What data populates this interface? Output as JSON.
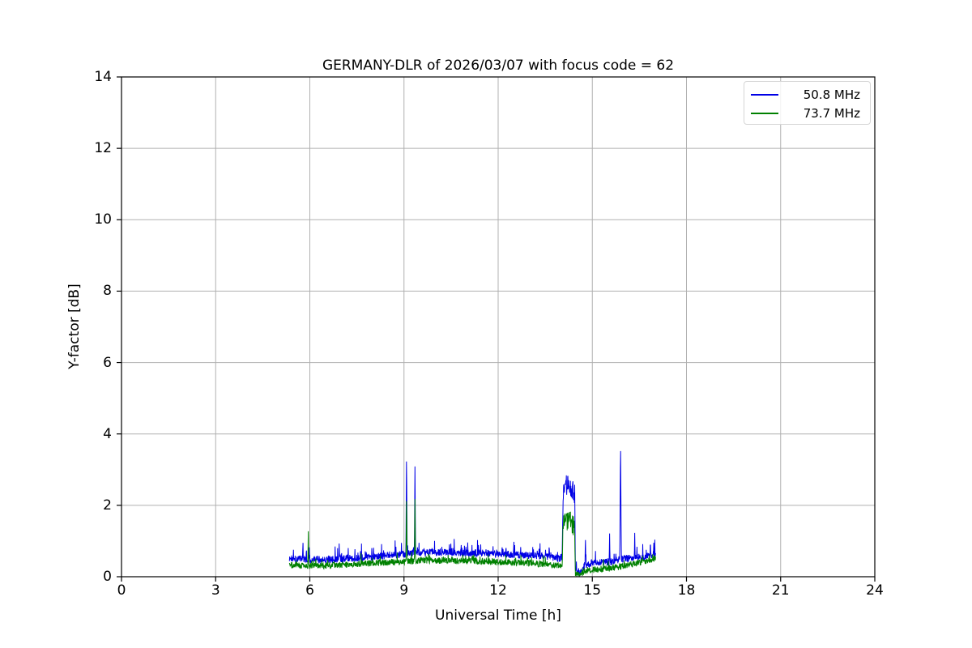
{
  "figure": {
    "title": "GERMANY-DLR of 2026/03/07 with focus code = 62"
  },
  "axes": {
    "xlabel": "Universal Time [h]",
    "ylabel": "Y-factor [dB]"
  },
  "legend": {
    "position": "upper right",
    "entries": [
      {
        "label": "50.8 MHz",
        "color": "#0000e6"
      },
      {
        "label": "73.7 MHz",
        "color": "#008000"
      }
    ]
  },
  "colors": {
    "background": "#ffffff",
    "grid": "#b0b0b0",
    "spine": "#000000",
    "text": "#000000",
    "series_blue": "#0000e6",
    "series_green": "#008000"
  },
  "chart_data": {
    "type": "line",
    "title": "GERMANY-DLR of 2026/03/07 with focus code = 62",
    "xlabel": "Universal Time [h]",
    "ylabel": "Y-factor [dB]",
    "xlim": [
      0,
      24
    ],
    "ylim": [
      0,
      14
    ],
    "xticks": [
      0,
      3,
      6,
      9,
      12,
      15,
      18,
      21,
      24
    ],
    "yticks": [
      0,
      2,
      4,
      6,
      8,
      10,
      12,
      14
    ],
    "grid": true,
    "legend_position": "upper right",
    "data_time_range_h": [
      5.35,
      17.02
    ],
    "series": [
      {
        "name": "50.8 MHz",
        "color": "#0000e6",
        "seed": 1337,
        "t_start": 5.35,
        "t_end": 17.02,
        "step_h": 0.008,
        "description": "Noisy Y-factor trace ~0.5-0.7 dB from 05:20 to 17:00 UT; narrow spikes to 3.5 dB at 9.08 h, 3.1 dB at 9.35 h, 3.77 dB at 15.9 h; elevated plateau 2.2-2.9 dB between 14.06 h and 14.45 h; brief drop to ~0.1 dB near 14.5 h",
        "baseline_envelope": [
          [
            5.35,
            0.5
          ],
          [
            6.2,
            0.48
          ],
          [
            7.0,
            0.5
          ],
          [
            8.0,
            0.55
          ],
          [
            9.0,
            0.63
          ],
          [
            9.6,
            0.68
          ],
          [
            10.5,
            0.68
          ],
          [
            11.5,
            0.66
          ],
          [
            12.5,
            0.62
          ],
          [
            13.4,
            0.58
          ],
          [
            13.95,
            0.5
          ],
          [
            14.04,
            0.55
          ],
          [
            14.07,
            2.4
          ],
          [
            14.15,
            2.55
          ],
          [
            14.25,
            2.6
          ],
          [
            14.35,
            2.45
          ],
          [
            14.44,
            2.3
          ],
          [
            14.46,
            0.15
          ],
          [
            14.6,
            0.12
          ],
          [
            14.8,
            0.35
          ],
          [
            15.2,
            0.4
          ],
          [
            15.6,
            0.42
          ],
          [
            16.0,
            0.5
          ],
          [
            16.5,
            0.55
          ],
          [
            17.02,
            0.62
          ]
        ],
        "noise": {
          "amp": 0.1,
          "burst_prob": 0.1,
          "burst": 0.35,
          "block_range": [
            14.06,
            14.45
          ],
          "block_amp": 0.28
        },
        "spikes": [
          {
            "t": 5.78,
            "peak": 1.05,
            "width": 0.02
          },
          {
            "t": 9.08,
            "peak": 3.5,
            "width": 0.025
          },
          {
            "t": 9.35,
            "peak": 3.1,
            "width": 0.025
          },
          {
            "t": 14.78,
            "peak": 1.15,
            "width": 0.02
          },
          {
            "t": 15.55,
            "peak": 1.2,
            "width": 0.02
          },
          {
            "t": 15.9,
            "peak": 3.77,
            "width": 0.03
          },
          {
            "t": 16.35,
            "peak": 1.25,
            "width": 0.02
          },
          {
            "t": 16.85,
            "peak": 1.1,
            "width": 0.02
          }
        ]
      },
      {
        "name": "73.7 MHz",
        "color": "#008000",
        "seed": 2024,
        "t_start": 5.35,
        "t_end": 17.02,
        "step_h": 0.008,
        "description": "Noisy Y-factor trace ~0.3-0.5 dB from 05:20 to 17:00 UT; spikes to 1.25 dB at 5.95 h, 2.35 dB at 9.08 h, 2.2 dB at 9.35 h; elevated plateau 1.2-1.9 dB between 14.06 h and 14.45 h; brief drop to ~0.05 dB near 14.5 h",
        "baseline_envelope": [
          [
            5.35,
            0.33
          ],
          [
            6.2,
            0.3
          ],
          [
            7.0,
            0.33
          ],
          [
            8.0,
            0.38
          ],
          [
            9.0,
            0.42
          ],
          [
            9.6,
            0.46
          ],
          [
            10.5,
            0.45
          ],
          [
            11.5,
            0.43
          ],
          [
            12.5,
            0.4
          ],
          [
            13.4,
            0.36
          ],
          [
            13.95,
            0.3
          ],
          [
            14.04,
            0.32
          ],
          [
            14.07,
            1.45
          ],
          [
            14.15,
            1.55
          ],
          [
            14.25,
            1.6
          ],
          [
            14.35,
            1.5
          ],
          [
            14.44,
            1.35
          ],
          [
            14.46,
            0.06
          ],
          [
            14.6,
            0.05
          ],
          [
            14.8,
            0.18
          ],
          [
            15.2,
            0.2
          ],
          [
            15.6,
            0.24
          ],
          [
            16.0,
            0.3
          ],
          [
            16.5,
            0.4
          ],
          [
            17.02,
            0.5
          ]
        ],
        "noise": {
          "amp": 0.09,
          "burst_prob": 0.06,
          "burst": 0.22,
          "block_range": [
            14.06,
            14.45
          ],
          "block_amp": 0.28
        },
        "spikes": [
          {
            "t": 5.95,
            "peak": 1.25,
            "width": 0.02
          },
          {
            "t": 9.08,
            "peak": 2.35,
            "width": 0.022
          },
          {
            "t": 9.35,
            "peak": 2.2,
            "width": 0.022
          }
        ]
      }
    ]
  }
}
